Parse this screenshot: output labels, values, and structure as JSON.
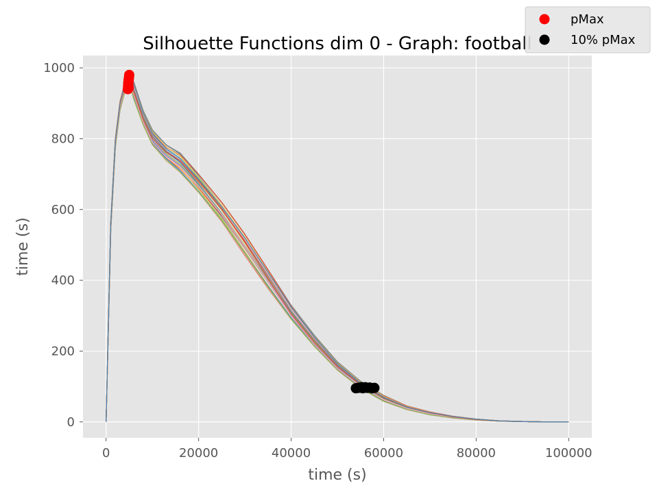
{
  "chart_data": {
    "type": "line",
    "title": "Silhouette Functions dim 0 - Graph:  football",
    "xlabel": "time (s)",
    "ylabel": "time (s)",
    "xlim": [
      -5000,
      105000
    ],
    "ylim": [
      -45,
      1035
    ],
    "xticks": [
      0,
      20000,
      40000,
      60000,
      80000,
      100000
    ],
    "xtick_labels": [
      "0",
      "20000",
      "40000",
      "60000",
      "80000",
      "100000"
    ],
    "yticks": [
      0,
      200,
      400,
      600,
      800,
      1000
    ],
    "ytick_labels": [
      "0",
      "200",
      "400",
      "600",
      "800",
      "1000"
    ],
    "grid": true,
    "style": "ggplot",
    "legend_position": "top-right",
    "series_count": 30,
    "envelope": {
      "x": [
        0,
        1000,
        2000,
        3000,
        4000,
        5000,
        6000,
        8000,
        10000,
        13000,
        16000,
        20000,
        25000,
        30000,
        35000,
        40000,
        45000,
        50000,
        55000,
        60000,
        65000,
        70000,
        75000,
        80000,
        85000,
        90000,
        95000,
        100000
      ],
      "low": [
        0,
        540,
        775,
        880,
        930,
        955,
        905,
        835,
        780,
        738,
        705,
        648,
        565,
        470,
        375,
        285,
        210,
        145,
        95,
        58,
        35,
        20,
        11,
        5,
        2,
        1,
        0,
        0
      ],
      "high": [
        0,
        565,
        800,
        905,
        955,
        975,
        960,
        880,
        825,
        783,
        760,
        700,
        620,
        530,
        430,
        330,
        245,
        170,
        115,
        75,
        45,
        28,
        16,
        8,
        3,
        1,
        0,
        0
      ]
    },
    "series_colors": [
      "#E24A33",
      "#348ABD",
      "#988ED5",
      "#777777",
      "#FBC15E",
      "#8EBA42",
      "#FFB5B8"
    ],
    "pmax_points": {
      "name": "pMax",
      "color": "#FF0000",
      "x": [
        4700,
        4750,
        4800,
        4850,
        4900,
        4950,
        5000,
        4800,
        4900,
        4850
      ],
      "y": [
        940,
        948,
        955,
        962,
        968,
        974,
        980,
        958,
        945,
        965
      ]
    },
    "tenpct_points": {
      "name": "10% pMax",
      "color": "#000000",
      "x": [
        54000,
        54500,
        55000,
        55500,
        56000,
        56500,
        57000,
        57500,
        58000,
        55200,
        56200
      ],
      "y": [
        95,
        96,
        97,
        95,
        98,
        96,
        97,
        95,
        96,
        98,
        97
      ]
    }
  }
}
